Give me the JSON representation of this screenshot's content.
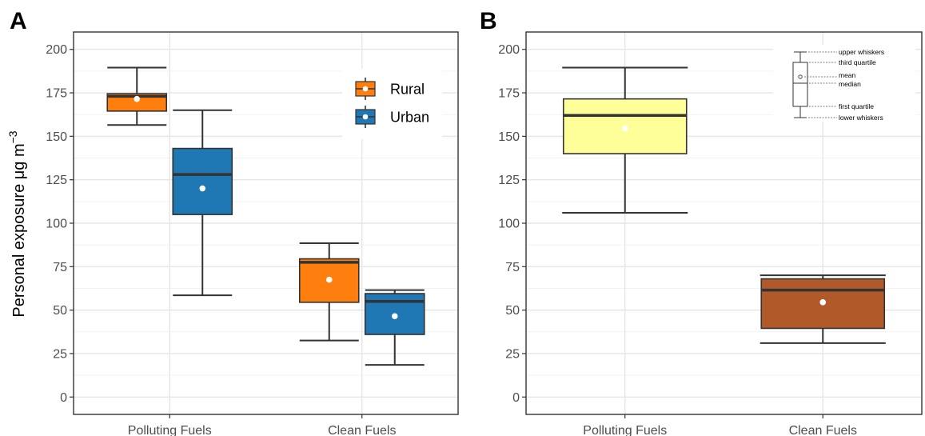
{
  "chart_data": [
    {
      "type": "box",
      "panel": "A",
      "ylabel": "Personal exposure μg m",
      "ylabel_sup": "−3",
      "ylim": [
        -10,
        210
      ],
      "yticks": [
        0,
        25,
        50,
        75,
        100,
        125,
        150,
        175,
        200
      ],
      "grid": true,
      "legend_placement": "top-right",
      "categories": [
        "Polluting Fuels",
        "Clean Fuels"
      ],
      "series": [
        {
          "name": "Rural",
          "color": "#ff7f0e",
          "boxes": [
            {
              "category": "Polluting Fuels",
              "whisker_low": 156.5,
              "q1": 164.5,
              "median": 173,
              "q3": 174.5,
              "whisker_high": 189.5,
              "mean": 171.5
            },
            {
              "category": "Clean Fuels",
              "whisker_low": 32.5,
              "q1": 54.5,
              "median": 77.5,
              "q3": 79.5,
              "whisker_high": 88.5,
              "mean": 67.5
            }
          ]
        },
        {
          "name": "Urban",
          "color": "#1f77b4",
          "boxes": [
            {
              "category": "Polluting Fuels",
              "whisker_low": 58.5,
              "q1": 105,
              "median": 128,
              "q3": 143,
              "whisker_high": 165,
              "mean": 120
            },
            {
              "category": "Clean Fuels",
              "whisker_low": 18.5,
              "q1": 36,
              "median": 55,
              "q3": 59.5,
              "whisker_high": 61.5,
              "mean": 46.5
            }
          ]
        }
      ]
    },
    {
      "type": "box",
      "panel": "B",
      "ylim": [
        -10,
        210
      ],
      "yticks": [
        0,
        25,
        50,
        75,
        100,
        125,
        150,
        175,
        200
      ],
      "grid": true,
      "categories": [
        "Polluting Fuels",
        "Clean Fuels"
      ],
      "boxes": [
        {
          "category": "Polluting Fuels",
          "color": "#ffff99",
          "whisker_low": 106,
          "q1": 140,
          "median": 162,
          "q3": 171.5,
          "whisker_high": 189.5,
          "mean": 154.5
        },
        {
          "category": "Clean Fuels",
          "color": "#b15928",
          "whisker_low": 31,
          "q1": 39.5,
          "median": 61.5,
          "q3": 68,
          "whisker_high": 70,
          "mean": 54.5
        }
      ],
      "key_labels": [
        "upper whiskers",
        "third quartile",
        "mean",
        "median",
        "first quartile",
        "lower whiskers"
      ]
    }
  ]
}
